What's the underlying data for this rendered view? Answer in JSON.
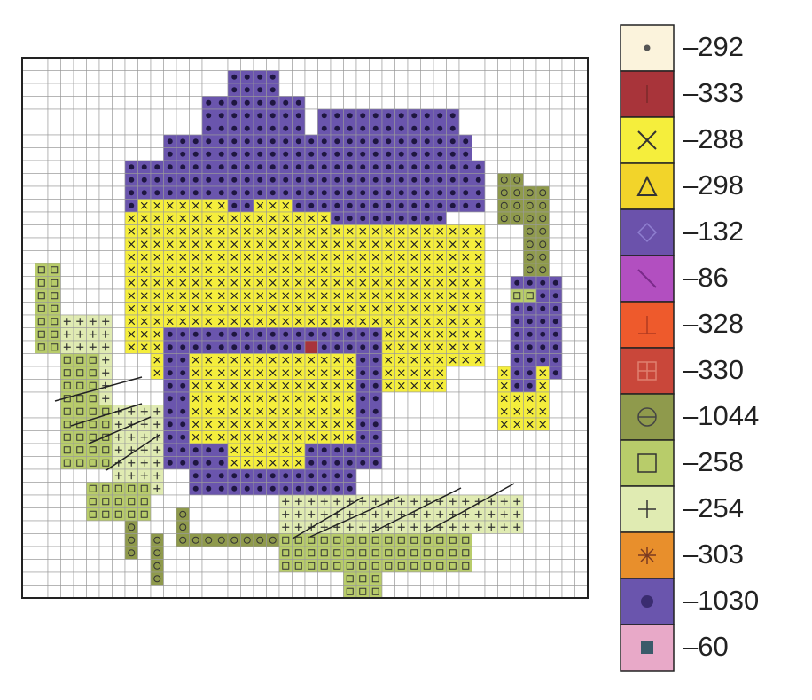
{
  "key": [
    {
      "label": "–292",
      "color": "#fbf3dc"
    },
    {
      "label": "–333",
      "color": "#a8343a"
    },
    {
      "label": "–288",
      "color": "#f5ee3c"
    },
    {
      "label": "–298",
      "color": "#f2d42a"
    },
    {
      "label": "–132",
      "color": "#6b52ab"
    },
    {
      "label": "–86",
      "color": "#b24fc0"
    },
    {
      "label": "–328",
      "color": "#ee5a2c"
    },
    {
      "label": "–330",
      "color": "#c9473a"
    },
    {
      "label": "–1044",
      "color": "#8f9a4c"
    },
    {
      "label": "–258",
      "color": "#b8cc6a"
    },
    {
      "label": "–254",
      "color": "#e0ebb2"
    },
    {
      "label": "–303",
      "color": "#e88f2c"
    },
    {
      "label": "–1030",
      "color": "#6a55ad"
    },
    {
      "label": "–60",
      "color": "#e8a9c8"
    }
  ]
}
